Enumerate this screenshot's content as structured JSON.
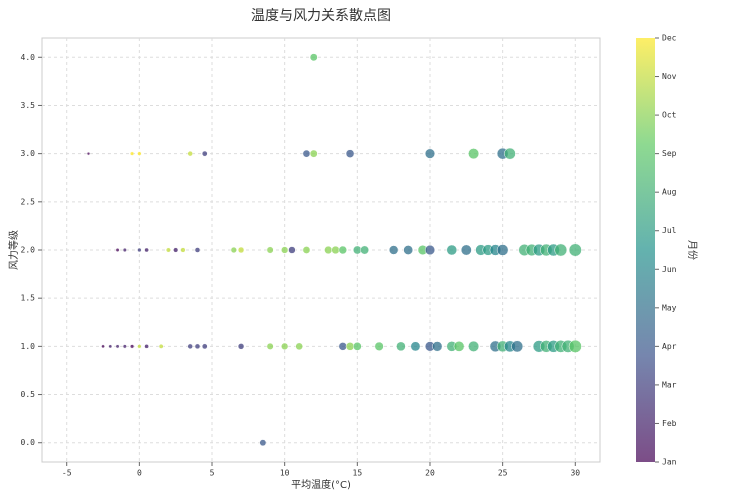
{
  "chart_data": {
    "type": "scatter",
    "title": "温度与风力关系散点图",
    "x_label": "平均温度(°C)",
    "y_label": "风力等级",
    "colorbar_label": "月份",
    "x": [
      -3.5,
      -0.5,
      0,
      3.5,
      4.5,
      11.5,
      12,
      14.5,
      20,
      23,
      25,
      25.5,
      12,
      8.5,
      -1.5,
      -1,
      0,
      0.5,
      2,
      2.5,
      3,
      4,
      6.5,
      7,
      9,
      10,
      10.5,
      11.5,
      13,
      13.5,
      14,
      15,
      15.5,
      17.5,
      18.5,
      19.5,
      20,
      21.5,
      22.5,
      23.5,
      24,
      24.5,
      25,
      26.5,
      27,
      27.5,
      28,
      28.5,
      29,
      30,
      -2.5,
      -2,
      -1.5,
      -1,
      -0.5,
      0,
      0.5,
      1.5,
      3.5,
      4,
      4.5,
      7,
      9,
      10,
      11,
      14,
      14.5,
      15,
      16.5,
      18,
      19,
      20,
      20.5,
      21.5,
      22,
      23,
      24.5,
      25,
      25.5,
      26,
      27.5,
      28,
      28.5,
      29,
      29.5,
      30
    ],
    "values": [
      3,
      3,
      3,
      3,
      3,
      3,
      3,
      3,
      3,
      3,
      3,
      3,
      4,
      0,
      2,
      2,
      2,
      2,
      2,
      2,
      2,
      2,
      2,
      2,
      2,
      2,
      2,
      2,
      2,
      2,
      2,
      2,
      2,
      2,
      2,
      2,
      2,
      2,
      2,
      2,
      2,
      2,
      2,
      2,
      2,
      2,
      2,
      2,
      2,
      2,
      1,
      1,
      1,
      1,
      1,
      1,
      1,
      1,
      1,
      1,
      1,
      1,
      1,
      1,
      1,
      1,
      1,
      1,
      1,
      1,
      1,
      1,
      1,
      1,
      1,
      1,
      1,
      1,
      1,
      1,
      1,
      1,
      1,
      1,
      1,
      1
    ],
    "months": [
      1,
      12,
      12,
      11,
      3,
      4,
      10,
      4,
      5,
      9,
      5,
      8,
      9,
      4,
      1,
      2,
      3,
      2,
      11,
      2,
      11,
      3,
      10,
      11,
      10,
      10,
      3,
      10,
      10,
      10,
      9,
      8,
      8,
      5,
      5,
      9,
      4,
      7,
      5,
      7,
      7,
      6,
      5,
      8,
      8,
      7,
      8,
      7,
      8,
      8,
      1,
      2,
      2,
      2,
      1,
      11,
      2,
      11,
      3,
      3,
      3,
      3,
      10,
      10,
      10,
      4,
      10,
      9,
      9,
      8,
      6,
      4,
      5,
      8,
      9,
      8,
      5,
      8,
      6,
      5,
      7,
      8,
      7,
      8,
      8,
      9
    ],
    "xlim": [
      -6.7,
      31.7
    ],
    "ylim": [
      -0.2,
      4.2
    ],
    "clim": [
      1,
      12
    ],
    "xticks": [
      -5,
      0,
      5,
      10,
      15,
      20,
      25,
      30
    ],
    "yticks": [
      {
        "value": 0,
        "label": "0.0"
      },
      {
        "value": 0.5,
        "label": "0.5"
      },
      {
        "value": 1,
        "label": "1.0"
      },
      {
        "value": 1.5,
        "label": "1.5"
      },
      {
        "value": 2,
        "label": "2.0"
      },
      {
        "value": 2.5,
        "label": "2.5"
      },
      {
        "value": 3,
        "label": "3.0"
      },
      {
        "value": 3.5,
        "label": "3.5"
      },
      {
        "value": 4,
        "label": "4.0"
      }
    ],
    "cticks": [
      {
        "value": 1,
        "label": "Jan"
      },
      {
        "value": 2,
        "label": "Feb"
      },
      {
        "value": 3,
        "label": "Mar"
      },
      {
        "value": 4,
        "label": "Apr"
      },
      {
        "value": 5,
        "label": "May"
      },
      {
        "value": 6,
        "label": "Jun"
      },
      {
        "value": 7,
        "label": "Jul"
      },
      {
        "value": 8,
        "label": "Aug"
      },
      {
        "value": 9,
        "label": "Sep"
      },
      {
        "value": 10,
        "label": "Oct"
      },
      {
        "value": 11,
        "label": "Nov"
      },
      {
        "value": 12,
        "label": "Dec"
      }
    ],
    "grid": true
  }
}
